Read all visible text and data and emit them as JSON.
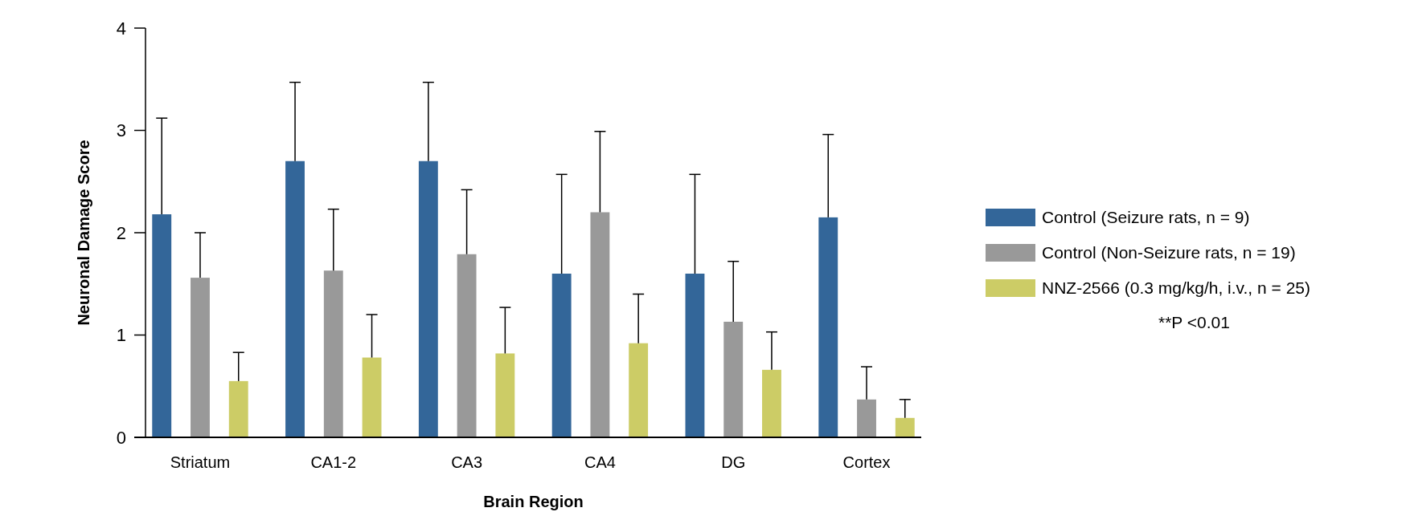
{
  "chart_data": {
    "type": "bar",
    "xlabel": "Brain Region",
    "ylabel": "Neuronal Damage Score",
    "categories": [
      "Striatum",
      "CA1-2",
      "CA3",
      "CA4",
      "DG",
      "Cortex"
    ],
    "series": [
      {
        "name": "Control (Seizure rats, n = 9)",
        "color": "#336699",
        "values": [
          2.18,
          2.7,
          2.7,
          1.6,
          1.6,
          2.15
        ],
        "errors": [
          [
            2.18,
            3.12
          ],
          [
            2.7,
            3.47
          ],
          [
            2.7,
            3.47
          ],
          [
            1.6,
            2.57
          ],
          [
            1.6,
            2.57
          ],
          [
            2.15,
            2.96
          ]
        ]
      },
      {
        "name": "Control (Non-Seizure rats, n = 19)",
        "color": "#999999",
        "values": [
          1.56,
          1.63,
          1.79,
          2.2,
          1.13,
          0.37
        ],
        "errors": [
          [
            1.56,
            2.0
          ],
          [
            1.63,
            2.23
          ],
          [
            1.79,
            2.42
          ],
          [
            2.2,
            2.99
          ],
          [
            1.13,
            1.72
          ],
          [
            0.37,
            0.69
          ]
        ]
      },
      {
        "name": "NNZ-2566 (0.3 mg/kg/h, i.v., n = 25)",
        "color": "#cccc66",
        "values": [
          0.55,
          0.78,
          0.82,
          0.92,
          0.66,
          0.19
        ],
        "errors": [
          [
            0.55,
            0.83
          ],
          [
            0.78,
            1.2
          ],
          [
            0.82,
            1.27
          ],
          [
            0.92,
            1.4
          ],
          [
            0.66,
            1.03
          ],
          [
            0.19,
            0.37
          ]
        ]
      }
    ],
    "ylim": [
      0,
      4
    ],
    "yticks": [
      0,
      1,
      2,
      3,
      4
    ],
    "legend": "right",
    "annotations": [
      "**P <0.01"
    ]
  }
}
